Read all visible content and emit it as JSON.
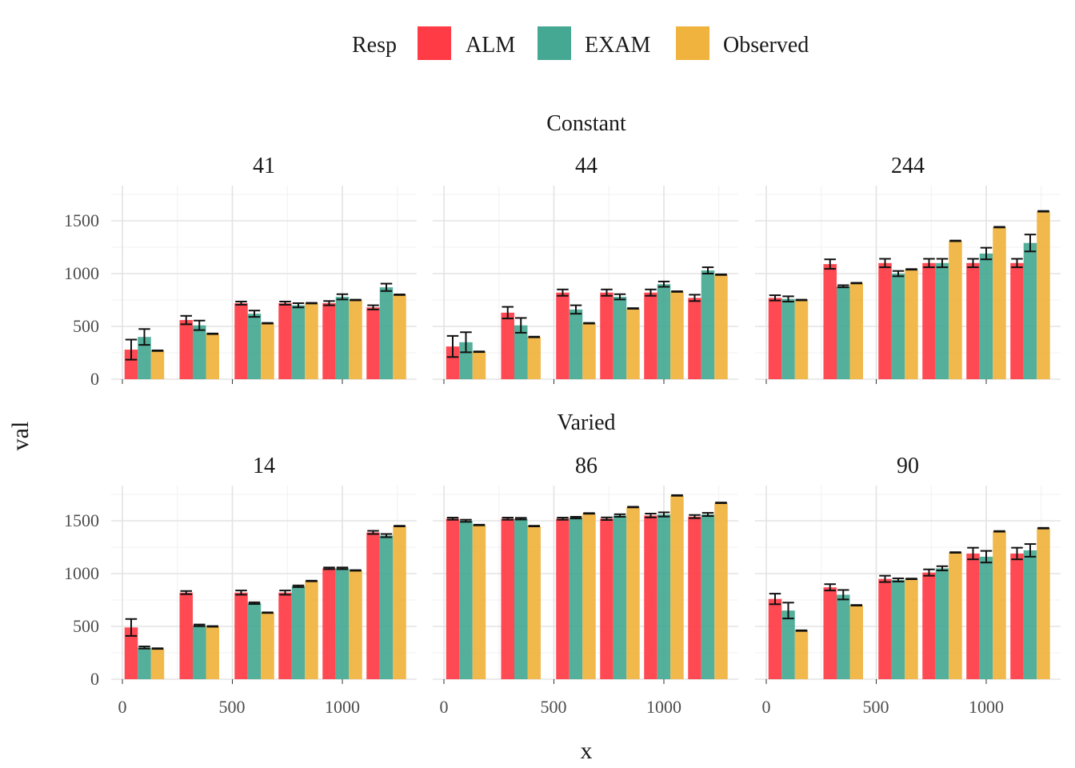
{
  "legend": {
    "title": "Resp",
    "items": [
      {
        "label": "ALM",
        "color": "#ff3b45"
      },
      {
        "label": "EXAM",
        "color": "#45a893"
      },
      {
        "label": "Observed",
        "color": "#f0b33d"
      }
    ]
  },
  "axes": {
    "xlabel": "x",
    "ylabel": "val",
    "x_ticks": [
      "0",
      "500",
      "1000"
    ],
    "y_ticks": [
      "0",
      "500",
      "1000",
      "1500"
    ]
  },
  "groups": [
    {
      "label": "Constant",
      "panels": [
        "41",
        "44",
        "244"
      ]
    },
    {
      "label": "Varied",
      "panels": [
        "14",
        "86",
        "90"
      ]
    }
  ],
  "chart_data": {
    "type": "bar",
    "title": "",
    "xlabel": "x",
    "ylabel": "val",
    "xlim": [
      -50,
      1300
    ],
    "ylim": [
      0,
      1800
    ],
    "grid": true,
    "legend_position": "top",
    "bar_groups_x": [
      100,
      350,
      600,
      800,
      1000,
      1200
    ],
    "series_names": [
      "ALM",
      "EXAM",
      "Observed"
    ],
    "panels": [
      {
        "group": "Constant",
        "title": "41",
        "series": [
          {
            "name": "ALM",
            "values": [
              280,
              560,
              720,
              720,
              720,
              680
            ],
            "errors": [
              95,
              40,
              15,
              15,
              20,
              20
            ]
          },
          {
            "name": "EXAM",
            "values": [
              400,
              510,
              620,
              700,
              780,
              870
            ],
            "errors": [
              75,
              45,
              30,
              20,
              25,
              35
            ]
          },
          {
            "name": "Observed",
            "values": [
              270,
              430,
              530,
              720,
              750,
              800
            ],
            "errors": [
              3,
              3,
              3,
              3,
              3,
              3
            ]
          }
        ]
      },
      {
        "group": "Constant",
        "title": "44",
        "series": [
          {
            "name": "ALM",
            "values": [
              310,
              630,
              820,
              820,
              820,
              770
            ],
            "errors": [
              100,
              55,
              30,
              30,
              30,
              30
            ]
          },
          {
            "name": "EXAM",
            "values": [
              350,
              510,
              660,
              780,
              900,
              1030
            ],
            "errors": [
              95,
              70,
              40,
              25,
              25,
              30
            ]
          },
          {
            "name": "Observed",
            "values": [
              260,
              400,
              530,
              670,
              830,
              990
            ],
            "errors": [
              3,
              3,
              3,
              3,
              3,
              3
            ]
          }
        ]
      },
      {
        "group": "Constant",
        "title": "244",
        "series": [
          {
            "name": "ALM",
            "values": [
              770,
              1090,
              1100,
              1100,
              1100,
              1100
            ],
            "errors": [
              25,
              45,
              40,
              40,
              40,
              40
            ]
          },
          {
            "name": "EXAM",
            "values": [
              760,
              880,
              1000,
              1100,
              1190,
              1290
            ],
            "errors": [
              25,
              10,
              25,
              40,
              55,
              80
            ]
          },
          {
            "name": "Observed",
            "values": [
              750,
              910,
              1040,
              1310,
              1440,
              1590
            ],
            "errors": [
              3,
              3,
              3,
              3,
              3,
              3
            ]
          }
        ]
      },
      {
        "group": "Varied",
        "title": "14",
        "series": [
          {
            "name": "ALM",
            "values": [
              490,
              820,
              820,
              820,
              1050,
              1390
            ],
            "errors": [
              80,
              15,
              20,
              20,
              8,
              15
            ]
          },
          {
            "name": "EXAM",
            "values": [
              300,
              510,
              720,
              880,
              1050,
              1360
            ],
            "errors": [
              10,
              8,
              8,
              8,
              8,
              15
            ]
          },
          {
            "name": "Observed",
            "values": [
              290,
              500,
              630,
              930,
              1030,
              1450
            ],
            "errors": [
              3,
              3,
              3,
              3,
              3,
              3
            ]
          }
        ]
      },
      {
        "group": "Varied",
        "title": "86",
        "series": [
          {
            "name": "ALM",
            "values": [
              1520,
              1520,
              1520,
              1520,
              1550,
              1540
            ],
            "errors": [
              10,
              10,
              10,
              12,
              18,
              15
            ]
          },
          {
            "name": "EXAM",
            "values": [
              1500,
              1520,
              1530,
              1550,
              1560,
              1560
            ],
            "errors": [
              10,
              8,
              8,
              12,
              20,
              15
            ]
          },
          {
            "name": "Observed",
            "values": [
              1460,
              1450,
              1570,
              1630,
              1740,
              1670
            ],
            "errors": [
              3,
              3,
              3,
              3,
              3,
              3
            ]
          }
        ]
      },
      {
        "group": "Varied",
        "title": "90",
        "series": [
          {
            "name": "ALM",
            "values": [
              760,
              870,
              950,
              1010,
              1190,
              1190
            ],
            "errors": [
              50,
              30,
              30,
              30,
              55,
              55
            ]
          },
          {
            "name": "EXAM",
            "values": [
              650,
              800,
              940,
              1050,
              1160,
              1220
            ],
            "errors": [
              75,
              45,
              15,
              20,
              55,
              60
            ]
          },
          {
            "name": "Observed",
            "values": [
              460,
              700,
              950,
              1200,
              1400,
              1430
            ],
            "errors": [
              3,
              3,
              3,
              3,
              3,
              3
            ]
          }
        ]
      }
    ]
  }
}
